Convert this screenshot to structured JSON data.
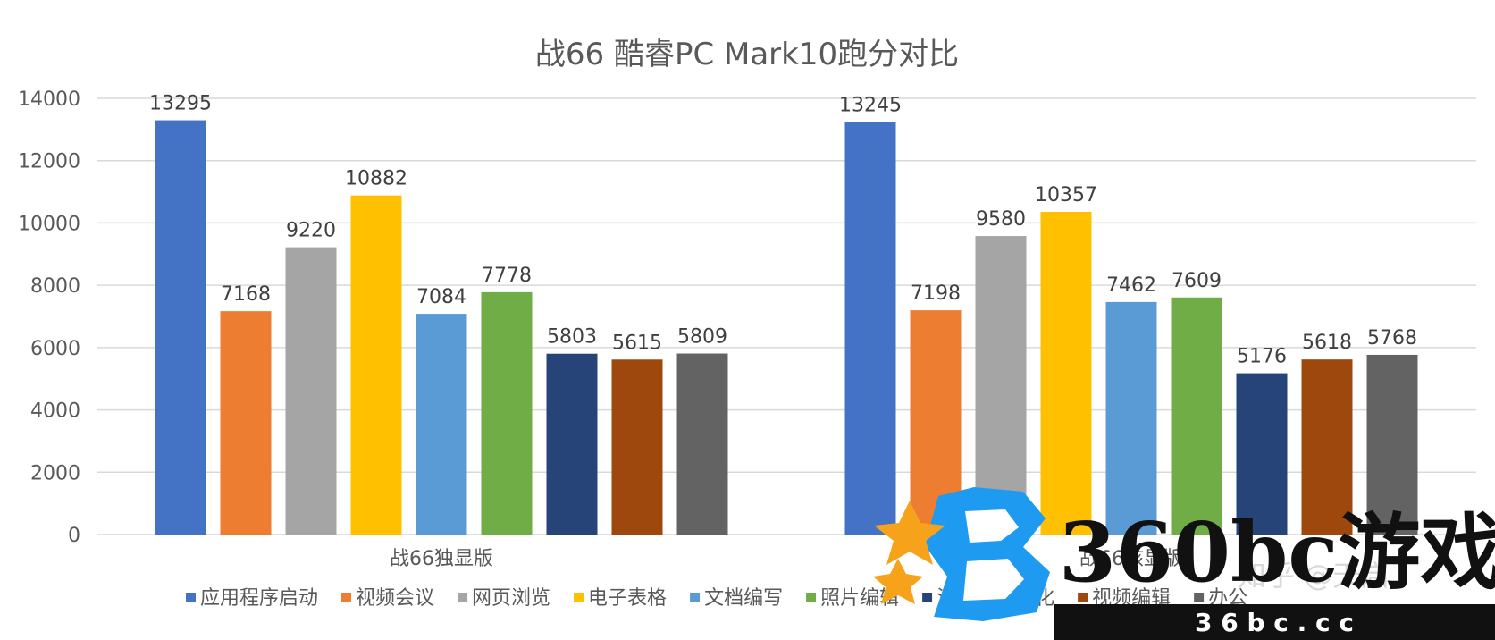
{
  "chart_data": {
    "type": "bar",
    "title": "战66 酷睿PC Mark10跑分对比",
    "categories": [
      "战66独显版",
      "战66核显版"
    ],
    "series": [
      {
        "name": "应用程序启动",
        "color": "#4472c4",
        "values": [
          13295,
          13245
        ]
      },
      {
        "name": "视频会议",
        "color": "#ed7d31",
        "values": [
          7168,
          7198
        ]
      },
      {
        "name": "网页浏览",
        "color": "#a5a5a5",
        "values": [
          9220,
          9580
        ]
      },
      {
        "name": "电子表格",
        "color": "#ffc000",
        "values": [
          10882,
          10357
        ]
      },
      {
        "name": "文档编写",
        "color": "#5b9bd5",
        "values": [
          7084,
          7462
        ]
      },
      {
        "name": "照片编辑",
        "color": "#70ad47",
        "values": [
          7778,
          7609
        ]
      },
      {
        "name": "渲染与渲染化",
        "color": "#264478",
        "values": [
          5803,
          5176
        ]
      },
      {
        "name": "视频编辑",
        "color": "#9e480e",
        "values": [
          5615,
          5618
        ]
      },
      {
        "name": "办公",
        "color": "#636363",
        "values": [
          5809,
          5768
        ]
      }
    ],
    "ylim": [
      0,
      14000
    ],
    "yticks": [
      "0",
      "2000",
      "4000",
      "6000",
      "8000",
      "10000",
      "12000",
      "14000"
    ],
    "grid": true,
    "legend_position": "bottom"
  },
  "watermark": {
    "brand_text": "360bc游戏",
    "domain_text": "3 6 b c . c c",
    "zhihu_text": "知乎 @天启"
  }
}
